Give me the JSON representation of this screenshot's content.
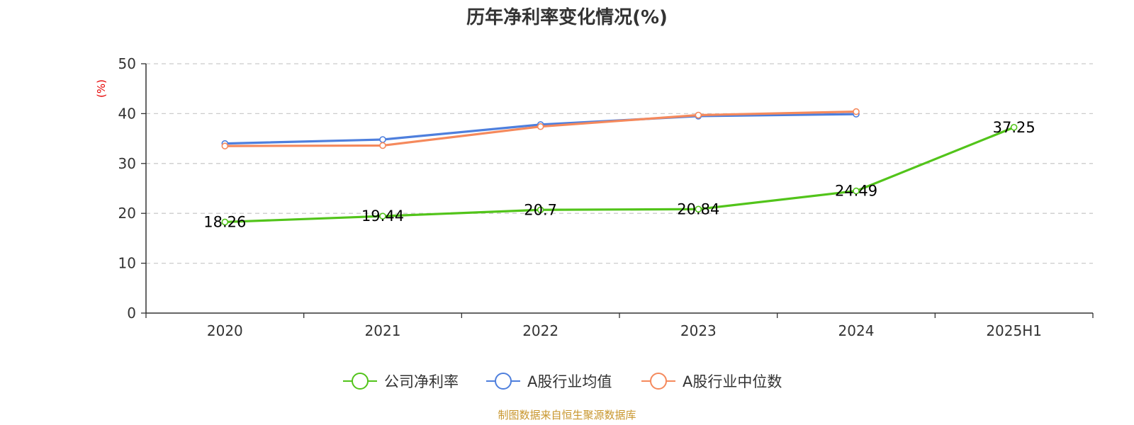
{
  "chart_data": {
    "type": "line",
    "title": "历年净利率变化情况(%)",
    "ylabel": "(%)",
    "ylabel_color": "#e60000",
    "categories": [
      "2020",
      "2021",
      "2022",
      "2023",
      "2024",
      "2025H1"
    ],
    "ylim": [
      0,
      50
    ],
    "yticks": [
      0,
      10,
      20,
      30,
      40,
      50
    ],
    "grid": true,
    "legend_position": "bottom",
    "series": [
      {
        "name": "公司净利率",
        "color": "#52c41a",
        "values": [
          18.26,
          19.44,
          20.7,
          20.84,
          24.49,
          37.25
        ],
        "labels": [
          "18.26",
          "19.44",
          "20.7",
          "20.84",
          "24.49",
          "37.25"
        ]
      },
      {
        "name": "A股行业均值",
        "color": "#4e7fdd",
        "values": [
          34.0,
          34.8,
          37.8,
          39.5,
          39.9,
          null
        ]
      },
      {
        "name": "A股行业中位数",
        "color": "#f5895c",
        "values": [
          33.5,
          33.6,
          37.4,
          39.7,
          40.4,
          null
        ]
      }
    ]
  },
  "source": {
    "text": "制图数据来自恒生聚源数据库",
    "color": "#c8962d"
  }
}
